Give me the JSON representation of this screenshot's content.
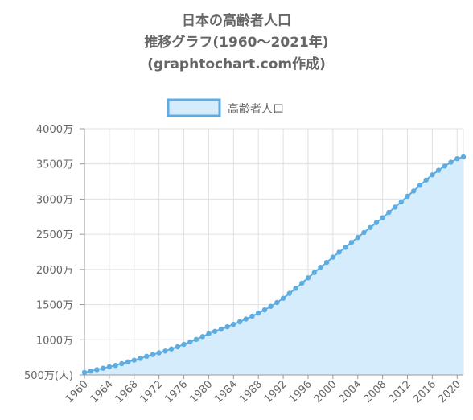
{
  "chart_data": {
    "type": "area",
    "title": [
      "日本の高齢者人口",
      "推移グラフ(1960〜2021年)",
      "(graphtochart.com作成)"
    ],
    "series": [
      {
        "name": "高齢者人口",
        "color": "#5DADE2",
        "fill": "#D4ECFB",
        "x": [
          1960,
          1961,
          1962,
          1963,
          1964,
          1965,
          1966,
          1967,
          1968,
          1969,
          1970,
          1971,
          1972,
          1973,
          1974,
          1975,
          1976,
          1977,
          1978,
          1979,
          1980,
          1981,
          1982,
          1983,
          1984,
          1985,
          1986,
          1987,
          1988,
          1989,
          1990,
          1991,
          1992,
          1993,
          1994,
          1995,
          1996,
          1997,
          1998,
          1999,
          2000,
          2001,
          2002,
          2003,
          2004,
          2005,
          2006,
          2007,
          2008,
          2009,
          2010,
          2011,
          2012,
          2013,
          2014,
          2015,
          2016,
          2017,
          2018,
          2019,
          2020,
          2021
        ],
        "values": [
          535,
          555,
          575,
          595,
          615,
          635,
          660,
          685,
          710,
          735,
          765,
          790,
          815,
          840,
          870,
          900,
          935,
          970,
          1005,
          1045,
          1085,
          1120,
          1150,
          1185,
          1220,
          1255,
          1295,
          1335,
          1380,
          1425,
          1475,
          1530,
          1590,
          1660,
          1730,
          1805,
          1880,
          1955,
          2030,
          2100,
          2175,
          2245,
          2315,
          2385,
          2455,
          2525,
          2595,
          2665,
          2735,
          2810,
          2885,
          2960,
          3040,
          3115,
          3195,
          3270,
          3345,
          3410,
          3470,
          3525,
          3575,
          3600
        ]
      }
    ],
    "yticks": [
      "500万(人)",
      "1000万",
      "1500万",
      "2000万",
      "2500万",
      "3000万",
      "3500万",
      "4000万"
    ],
    "ytick_values": [
      500,
      1000,
      1500,
      2000,
      2500,
      3000,
      3500,
      4000
    ],
    "xticks": [
      "1960",
      "1964",
      "1968",
      "1972",
      "1976",
      "1980",
      "1984",
      "1988",
      "1992",
      "1996",
      "2000",
      "2004",
      "2008",
      "2012",
      "2016",
      "2020"
    ],
    "ylim": [
      500,
      4000
    ],
    "xlim": [
      1960,
      2021
    ],
    "grid": true,
    "legend_position": "top"
  }
}
